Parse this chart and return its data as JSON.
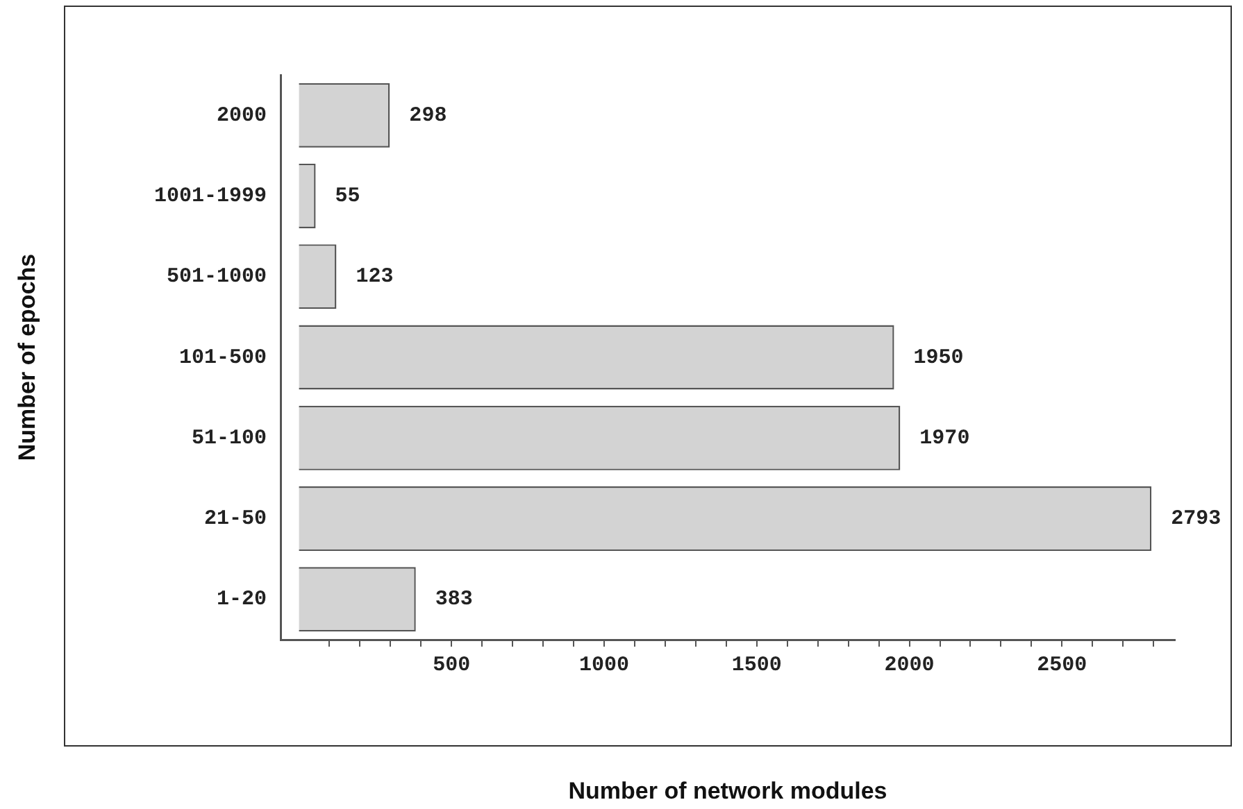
{
  "chart_data": {
    "type": "bar",
    "orientation": "horizontal",
    "xlabel": "Number of network modules",
    "ylabel": "Number of epochs",
    "categories": [
      "2000",
      "1001-1999",
      "501-1000",
      "101-500",
      "51-100",
      "21-50",
      "1-20"
    ],
    "values": [
      298,
      55,
      123,
      1950,
      1970,
      2793,
      383
    ],
    "color": "#d3d3d3",
    "data_labels": true,
    "grid": false,
    "legend": false,
    "xlim": [
      -60,
      2870
    ],
    "xticks": [
      {
        "value": 100,
        "label": null
      },
      {
        "value": 200,
        "label": null
      },
      {
        "value": 300,
        "label": null
      },
      {
        "value": 400,
        "label": null
      },
      500,
      {
        "value": 600,
        "label": null
      },
      {
        "value": 700,
        "label": null
      },
      {
        "value": 800,
        "label": null
      },
      {
        "value": 900,
        "label": null
      },
      1000,
      {
        "value": 1100,
        "label": null
      },
      {
        "value": 1200,
        "label": null
      },
      {
        "value": 1300,
        "label": null
      },
      {
        "value": 1400,
        "label": null
      },
      1500,
      {
        "value": 1600,
        "label": null
      },
      {
        "value": 1700,
        "label": null
      },
      {
        "value": 1800,
        "label": null
      },
      {
        "value": 1900,
        "label": null
      },
      2000,
      {
        "value": 2100,
        "label": null
      },
      {
        "value": 2200,
        "label": null
      },
      {
        "value": 2300,
        "label": null
      },
      {
        "value": 2400,
        "label": null
      },
      2500,
      {
        "value": 2600,
        "label": null
      },
      {
        "value": 2700,
        "label": null
      },
      {
        "value": 2800,
        "label": null
      }
    ]
  }
}
